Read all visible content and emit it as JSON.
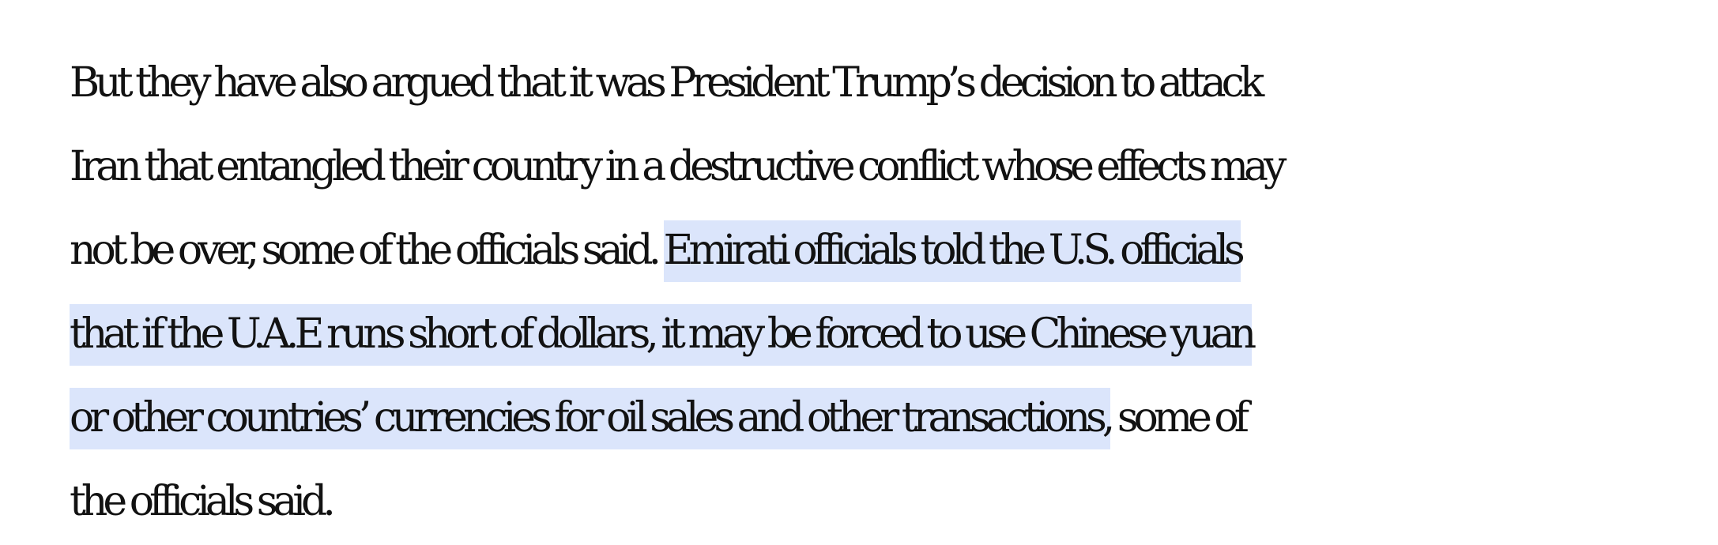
{
  "article": {
    "paragraph": {
      "lines": [
        {
          "pre": "But they have also argued that it was President Trump’s decision to attack",
          "sel": "",
          "post": ""
        },
        {
          "pre": "Iran that entangled their country in a destructive conflict whose effects may",
          "sel": "",
          "post": ""
        },
        {
          "pre": "not be over, some of the officials said. ",
          "sel": "Emirati officials told the U.S. officials",
          "post": ""
        },
        {
          "pre": "",
          "sel": "that if the U.A.E runs short of dollars, it may be forced to use Chinese yuan",
          "post": ""
        },
        {
          "pre": "",
          "sel": "or other countries’ currencies for oil sales and other transactions,",
          "post": " some of"
        },
        {
          "pre": "the officials said.",
          "sel": "",
          "post": ""
        }
      ]
    }
  },
  "colors": {
    "text": "#121212",
    "selection_highlight": "#dbe5fb",
    "background": "#ffffff"
  }
}
